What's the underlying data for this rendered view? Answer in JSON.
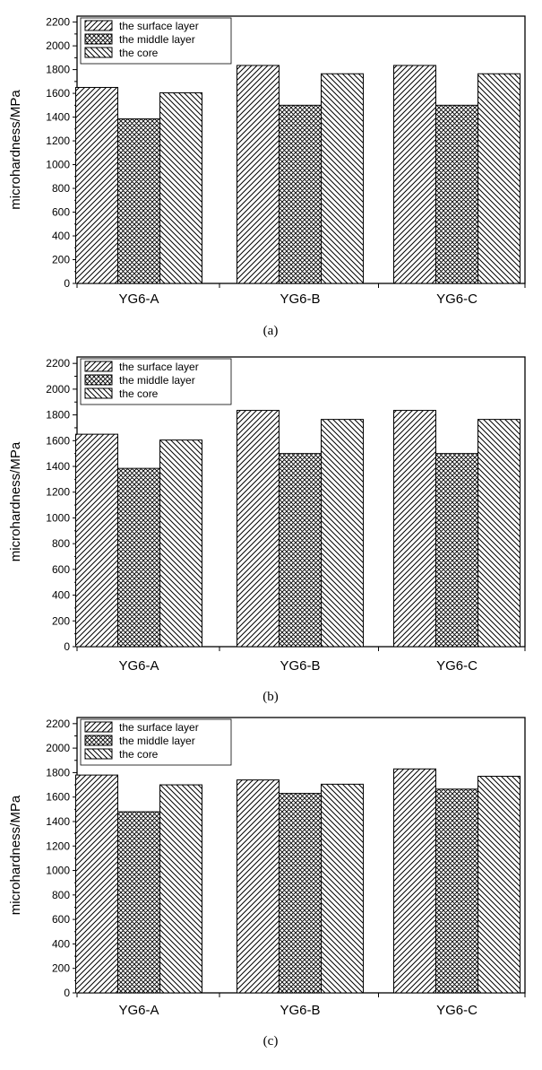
{
  "chart_data": [
    {
      "type": "bar",
      "panel_label": "(a)",
      "ylabel": "microhardness/MPa",
      "xlabel": "",
      "ylim": [
        0,
        2250
      ],
      "yticks": [
        0,
        200,
        400,
        600,
        800,
        1000,
        1200,
        1400,
        1600,
        1800,
        2000,
        2200
      ],
      "categories": [
        "YG6-A",
        "YG6-B",
        "YG6-C"
      ],
      "series": [
        {
          "name": "the surface layer",
          "pattern": "diagonal-forward",
          "values": [
            1650,
            1835,
            1835
          ]
        },
        {
          "name": "the middle layer",
          "pattern": "crosshatch",
          "values": [
            1385,
            1500,
            1500
          ]
        },
        {
          "name": "the core",
          "pattern": "diagonal-backward",
          "values": [
            1605,
            1765,
            1765
          ]
        }
      ],
      "legend": "top-left",
      "grid": false
    },
    {
      "type": "bar",
      "panel_label": "(b)",
      "ylabel": "microhardness/MPa",
      "xlabel": "",
      "ylim": [
        0,
        2250
      ],
      "yticks": [
        0,
        200,
        400,
        600,
        800,
        1000,
        1200,
        1400,
        1600,
        1800,
        2000,
        2200
      ],
      "categories": [
        "YG6-A",
        "YG6-B",
        "YG6-C"
      ],
      "series": [
        {
          "name": "the surface layer",
          "pattern": "diagonal-forward",
          "values": [
            1650,
            1835,
            1835
          ]
        },
        {
          "name": "the middle layer",
          "pattern": "crosshatch",
          "values": [
            1385,
            1500,
            1500
          ]
        },
        {
          "name": "the core",
          "pattern": "diagonal-backward",
          "values": [
            1605,
            1765,
            1765
          ]
        }
      ],
      "legend": "top-left",
      "grid": false
    },
    {
      "type": "bar",
      "panel_label": "(c)",
      "ylabel": "microhardness/MPa",
      "xlabel": "",
      "ylim": [
        0,
        2250
      ],
      "yticks": [
        0,
        200,
        400,
        600,
        800,
        1000,
        1200,
        1400,
        1600,
        1800,
        2000,
        2200
      ],
      "categories": [
        "YG6-A",
        "YG6-B",
        "YG6-C"
      ],
      "series": [
        {
          "name": "the surface layer",
          "pattern": "diagonal-forward",
          "values": [
            1780,
            1740,
            1830
          ]
        },
        {
          "name": "the middle layer",
          "pattern": "crosshatch",
          "values": [
            1480,
            1630,
            1665
          ]
        },
        {
          "name": "the core",
          "pattern": "diagonal-backward",
          "values": [
            1700,
            1705,
            1770
          ]
        }
      ],
      "legend": "top-left",
      "grid": false
    }
  ]
}
